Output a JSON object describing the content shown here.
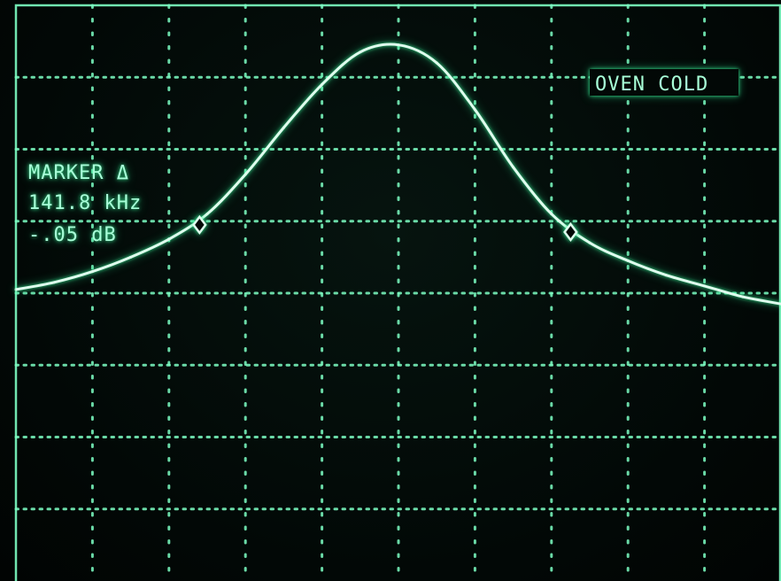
{
  "screen": {
    "phosphor_color": "#7dffc4",
    "trace_color": "#dfffee",
    "background_color": "#020806"
  },
  "annotations": {
    "status_label": "OVEN COLD",
    "marker_mode": "MARKER Δ",
    "marker_freq": "141.8 kHz",
    "marker_level": "-.05 dB"
  },
  "chart_data": {
    "type": "line",
    "title": "",
    "xlabel": "",
    "ylabel": "",
    "grid": true,
    "grid_divisions": {
      "x": 10,
      "y": 8
    },
    "xlim": [
      0,
      10
    ],
    "ylim": [
      0,
      8
    ],
    "series": [
      {
        "x": [
          0,
          0.5,
          1,
          1.5,
          2,
          2.5,
          3,
          3.5,
          4,
          4.5,
          5,
          5.5,
          6,
          6.5,
          7,
          7.5,
          8,
          8.5,
          9,
          9.5,
          10
        ],
        "y": [
          4.05,
          4.15,
          4.3,
          4.5,
          4.75,
          5.1,
          5.65,
          6.3,
          6.9,
          7.35,
          7.45,
          7.2,
          6.55,
          5.75,
          5.1,
          4.7,
          4.45,
          4.25,
          4.1,
          3.95,
          3.85
        ]
      }
    ],
    "markers": [
      {
        "x": 2.4,
        "y": 4.95
      },
      {
        "x": 7.25,
        "y": 4.85
      }
    ]
  }
}
